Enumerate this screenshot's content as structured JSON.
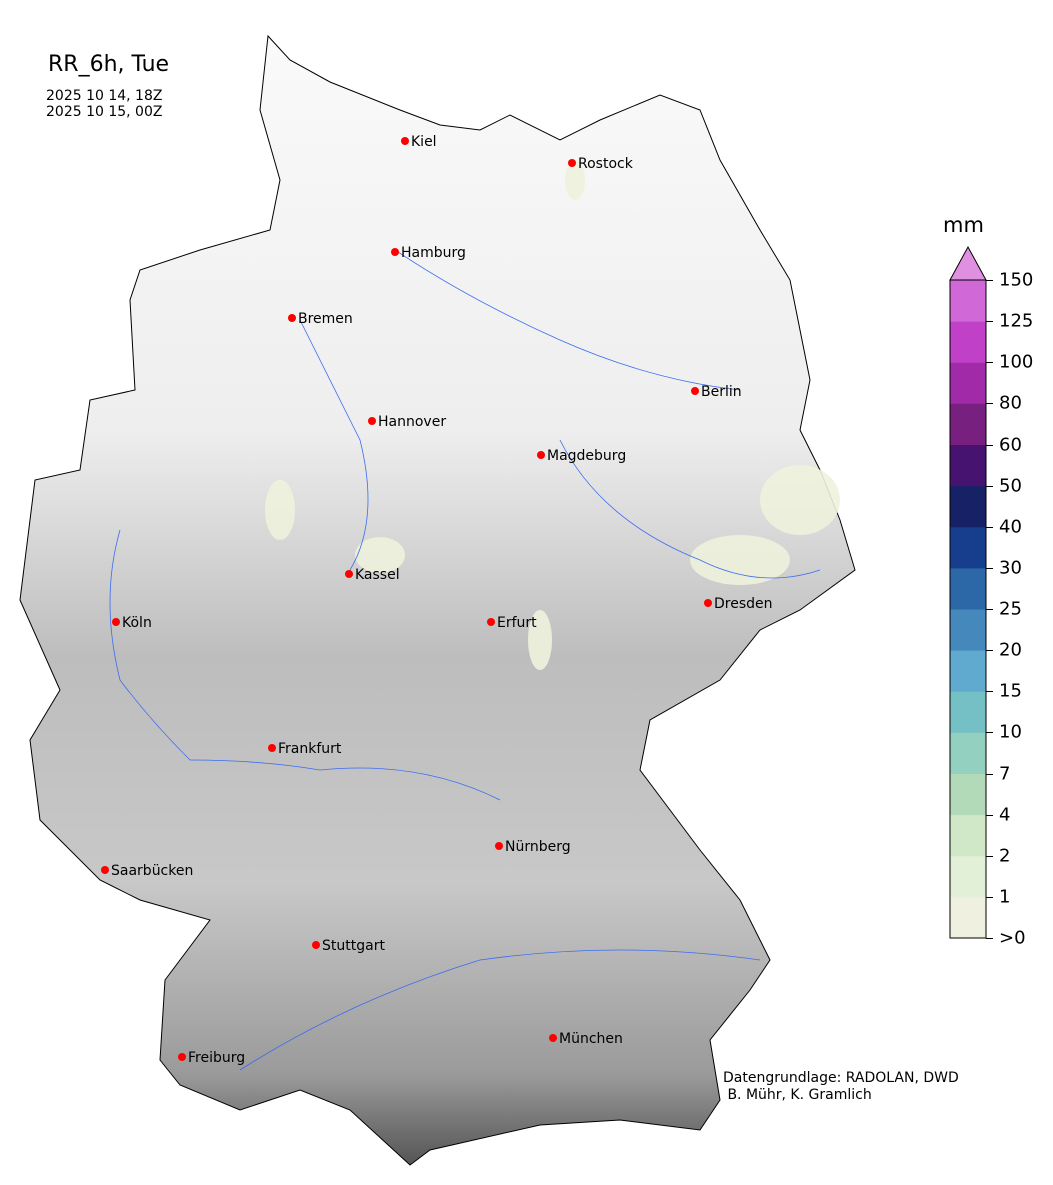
{
  "title": "RR_6h, Tue",
  "period": [
    "2025 10 14, 18Z",
    "2025 10 15, 00Z"
  ],
  "credit": "Datengrundlage: RADOLAN, DWD\n B. Mühr, K. Gramlich",
  "colorbar": {
    "unit": "mm",
    "ticks": [
      ">0",
      "1",
      "2",
      "4",
      "7",
      "10",
      "15",
      "20",
      "25",
      "30",
      "40",
      "50",
      "60",
      "80",
      "100",
      "125",
      "150"
    ],
    "colors": [
      "#f0f0e0",
      "#e2f0d8",
      "#d0e8c8",
      "#b2dab8",
      "#94d0c0",
      "#74c0c4",
      "#60aad0",
      "#4488bc",
      "#2c68a8",
      "#163e8c",
      "#172266",
      "#461470",
      "#782080",
      "#a02aa8",
      "#c040c8",
      "#d068d8"
    ],
    "extend_color": "#e090e0"
  },
  "cities": [
    {
      "name": "Kiel"
    },
    {
      "name": "Rostock"
    },
    {
      "name": "Hamburg"
    },
    {
      "name": "Bremen"
    },
    {
      "name": "Berlin"
    },
    {
      "name": "Hannover"
    },
    {
      "name": "Magdeburg"
    },
    {
      "name": "Kassel"
    },
    {
      "name": "Köln"
    },
    {
      "name": "Erfurt"
    },
    {
      "name": "Dresden"
    },
    {
      "name": "Frankfurt"
    },
    {
      "name": "Nürnberg"
    },
    {
      "name": "Saarbücken"
    },
    {
      "name": "Stuttgart"
    },
    {
      "name": "Freiburg"
    },
    {
      "name": "München"
    }
  ],
  "city_marker_color": "#ff0000"
}
